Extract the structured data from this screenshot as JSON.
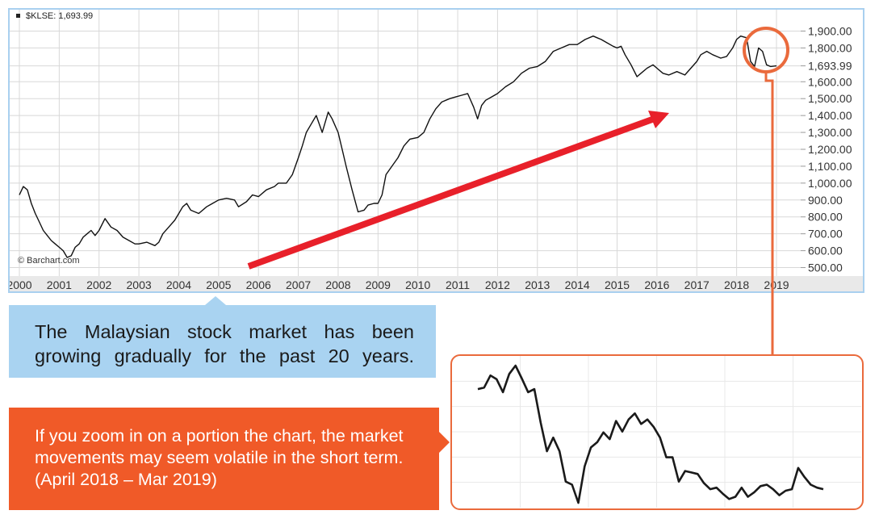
{
  "chart_data": [
    {
      "type": "line",
      "title": "$KLSE: 1,693.99",
      "watermark": "© Barchart.com",
      "xlabel": "",
      "ylabel": "",
      "x_ticks": [
        "2000",
        "2001",
        "2002",
        "2003",
        "2004",
        "2005",
        "2006",
        "2007",
        "2008",
        "2009",
        "2010",
        "2011",
        "2012",
        "2013",
        "2014",
        "2015",
        "2016",
        "2017",
        "2018",
        "2019"
      ],
      "y_ticks": [
        500,
        600,
        700,
        800,
        900,
        1000,
        1100,
        1200,
        1300,
        1400,
        1500,
        1600,
        1693.99,
        1800,
        1900
      ],
      "y_tick_labels": [
        "500.00",
        "600.00",
        "700.00",
        "800.00",
        "900.00",
        "1,000.00",
        "1,100.00",
        "1,200.00",
        "1,300.00",
        "1,400.00",
        "1,500.00",
        "1,600.00",
        "1,693.99",
        "1,800.00",
        "1,900.00"
      ],
      "xlim": [
        2000,
        2019
      ],
      "ylim": [
        450,
        1950
      ],
      "grid": true,
      "series": [
        {
          "x": [
            2000.0,
            2000.1,
            2000.2,
            2000.3,
            2000.4,
            2000.5,
            2000.6,
            2000.7,
            2000.8,
            2000.9,
            2001.0,
            2001.1,
            2001.2,
            2001.3,
            2001.4,
            2001.5,
            2001.6,
            2001.7,
            2001.8,
            2001.9,
            2002.0,
            2002.15,
            2002.3,
            2002.45,
            2002.6,
            2002.75,
            2002.9,
            2003.0,
            2003.2,
            2003.4,
            2003.5,
            2003.6,
            2003.75,
            2003.9,
            2004.0,
            2004.1,
            2004.2,
            2004.3,
            2004.5,
            2004.7,
            2004.85,
            2005.0,
            2005.2,
            2005.4,
            2005.5,
            2005.7,
            2005.85,
            2006.0,
            2006.2,
            2006.4,
            2006.5,
            2006.7,
            2006.85,
            2007.0,
            2007.1,
            2007.2,
            2007.3,
            2007.45,
            2007.6,
            2007.75,
            2007.85,
            2008.0,
            2008.1,
            2008.2,
            2008.35,
            2008.5,
            2008.65,
            2008.75,
            2008.9,
            2009.0,
            2009.1,
            2009.2,
            2009.35,
            2009.5,
            2009.65,
            2009.8,
            2010.0,
            2010.15,
            2010.3,
            2010.45,
            2010.6,
            2010.8,
            2010.95,
            2011.1,
            2011.25,
            2011.4,
            2011.5,
            2011.6,
            2011.7,
            2011.85,
            2012.0,
            2012.2,
            2012.4,
            2012.6,
            2012.8,
            2013.0,
            2013.2,
            2013.4,
            2013.6,
            2013.8,
            2014.0,
            2014.2,
            2014.4,
            2014.5,
            2014.6,
            2014.75,
            2014.9,
            2015.0,
            2015.1,
            2015.2,
            2015.35,
            2015.5,
            2015.6,
            2015.75,
            2015.9,
            2016.0,
            2016.15,
            2016.3,
            2016.5,
            2016.7,
            2016.85,
            2017.0,
            2017.1,
            2017.25,
            2017.4,
            2017.5,
            2017.6,
            2017.75,
            2017.9,
            2018.0,
            2018.1,
            2018.25,
            2018.35,
            2018.45,
            2018.55,
            2018.65,
            2018.75,
            2018.85,
            2019.0
          ],
          "values": [
            930,
            980,
            960,
            880,
            820,
            770,
            720,
            690,
            660,
            640,
            620,
            600,
            560,
            570,
            620,
            640,
            680,
            700,
            720,
            690,
            720,
            790,
            740,
            720,
            680,
            660,
            640,
            640,
            650,
            630,
            650,
            700,
            740,
            780,
            820,
            860,
            880,
            840,
            820,
            860,
            880,
            900,
            910,
            900,
            860,
            890,
            930,
            920,
            960,
            980,
            1000,
            1000,
            1050,
            1150,
            1220,
            1300,
            1340,
            1400,
            1300,
            1420,
            1380,
            1300,
            1200,
            1100,
            960,
            830,
            840,
            870,
            880,
            880,
            930,
            1050,
            1100,
            1150,
            1220,
            1260,
            1270,
            1300,
            1380,
            1440,
            1480,
            1500,
            1510,
            1520,
            1530,
            1450,
            1380,
            1460,
            1490,
            1510,
            1530,
            1570,
            1600,
            1650,
            1680,
            1690,
            1720,
            1780,
            1800,
            1820,
            1820,
            1850,
            1870,
            1860,
            1850,
            1830,
            1810,
            1800,
            1810,
            1760,
            1700,
            1630,
            1650,
            1680,
            1700,
            1680,
            1650,
            1640,
            1660,
            1640,
            1680,
            1720,
            1760,
            1780,
            1760,
            1750,
            1740,
            1750,
            1800,
            1850,
            1870,
            1860,
            1720,
            1690,
            1800,
            1780,
            1700,
            1690,
            1694
          ]
        }
      ]
    },
    {
      "type": "line",
      "title": "",
      "xlabel": "",
      "ylabel": "",
      "period": "April 2018 – Mar 2019",
      "grid": true,
      "series": [
        {
          "x": [
            0,
            1,
            2,
            3,
            4,
            5,
            6,
            7,
            8,
            9,
            10,
            11,
            12,
            13,
            14,
            15,
            16,
            17,
            18,
            19,
            20,
            21,
            22,
            23,
            24,
            25,
            26,
            27,
            28,
            29,
            30,
            31,
            32,
            33,
            34,
            35,
            36,
            37,
            38,
            39,
            40,
            41,
            42,
            43,
            44,
            45,
            46,
            47,
            48,
            49,
            50,
            51,
            52,
            53,
            54,
            55
          ],
          "values": [
            1832,
            1834,
            1850,
            1845,
            1828,
            1852,
            1863,
            1846,
            1828,
            1832,
            1788,
            1750,
            1768,
            1750,
            1710,
            1706,
            1682,
            1730,
            1755,
            1762,
            1775,
            1766,
            1790,
            1776,
            1792,
            1800,
            1786,
            1792,
            1782,
            1768,
            1742,
            1742,
            1710,
            1724,
            1722,
            1720,
            1708,
            1700,
            1702,
            1694,
            1687,
            1690,
            1702,
            1690,
            1696,
            1704,
            1706,
            1700,
            1692,
            1698,
            1700,
            1728,
            1716,
            1706,
            1702,
            1700
          ]
        }
      ]
    }
  ],
  "callouts": {
    "blue_text": "The Malaysian stock market has been growing gradually for the past 20 years.",
    "orange_text": "If you zoom in on a portion the chart, the market movements may seem volatile in the short term. (April 2018 – Mar 2019)"
  },
  "colors": {
    "frame_border": "#a9d0ef",
    "axis_band": "#e9e9e9",
    "grid": "#d8d8d8",
    "line": "#111111",
    "arrow": "#e8202a",
    "callout_blue": "#a9d3f1",
    "callout_orange": "#f05a28",
    "circle": "#ea6a3c"
  }
}
